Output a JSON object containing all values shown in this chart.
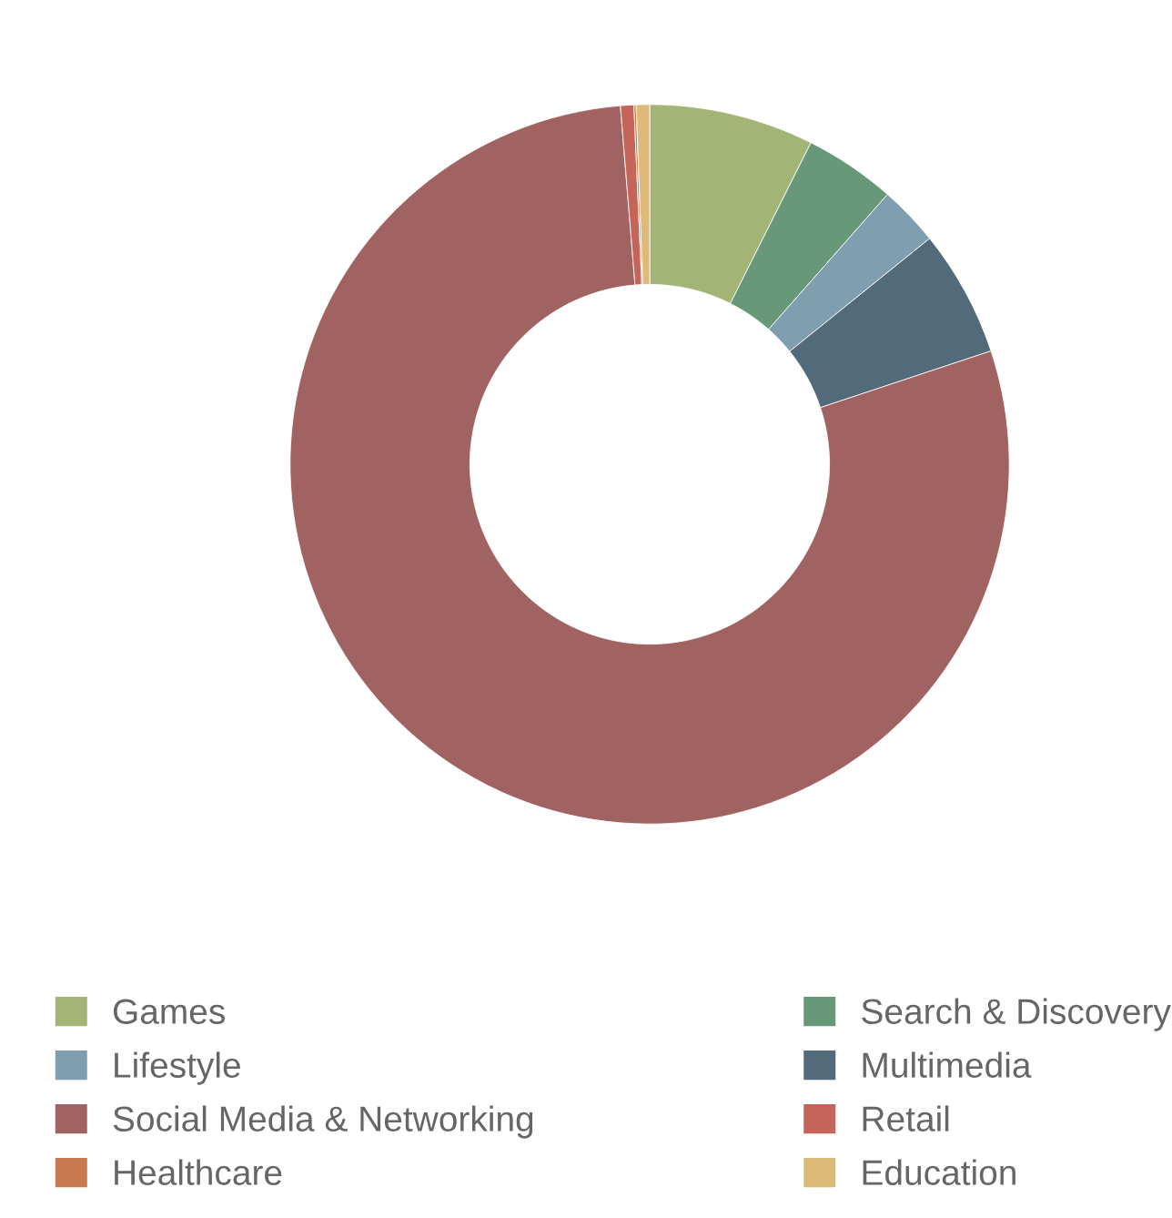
{
  "chart_data": {
    "type": "donut",
    "categories": [
      "Games",
      "Search & Discovery",
      "Lifestyle",
      "Multimedia",
      "Social Media & Networking",
      "Retail",
      "Healthcare",
      "Education"
    ],
    "values": [
      7.4,
      4.1,
      2.7,
      5.7,
      78.8,
      0.6,
      0.1,
      0.6
    ],
    "colors": [
      "#a2b476",
      "#679878",
      "#7f9fb0",
      "#536a7b",
      "#a16361",
      "#c5655a",
      "#c97a52",
      "#dcbb78"
    ],
    "legend": "bottom"
  }
}
